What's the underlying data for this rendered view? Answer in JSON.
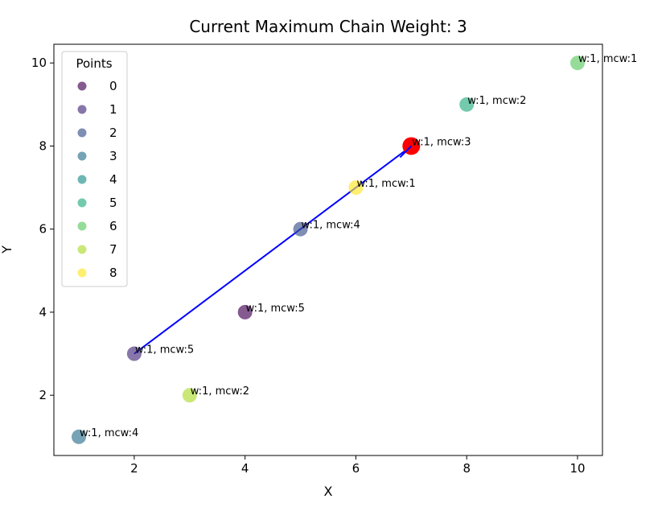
{
  "chart_data": {
    "type": "scatter",
    "title": "Current Maximum Chain Weight: 3",
    "xlabel": "X",
    "ylabel": "Y",
    "xlim": [
      0.55,
      10.45
    ],
    "ylim": [
      0.55,
      10.45
    ],
    "xticks": [
      2,
      4,
      6,
      8,
      10
    ],
    "yticks": [
      2,
      4,
      6,
      8,
      10
    ],
    "grid": false,
    "legend": {
      "title": "Points",
      "placement": "top-left",
      "entries": [
        "0",
        "1",
        "2",
        "3",
        "4",
        "5",
        "6",
        "7",
        "8"
      ]
    },
    "points": [
      {
        "id": 0,
        "x": 4,
        "y": 4,
        "label": "w:1, mcw:5",
        "color": "#440154"
      },
      {
        "id": 1,
        "x": 2,
        "y": 3,
        "label": "w:1, mcw:5",
        "color": "#472d7b"
      },
      {
        "id": 2,
        "x": 5,
        "y": 6,
        "label": "w:1, mcw:4",
        "color": "#3b528b"
      },
      {
        "id": 3,
        "x": 1,
        "y": 1,
        "label": "w:1, mcw:4",
        "color": "#2c728e"
      },
      {
        "id": 4,
        "x": 7,
        "y": 8,
        "label": "w:1, mcw:3",
        "color": "#21918c"
      },
      {
        "id": 5,
        "x": 8,
        "y": 9,
        "label": "w:1, mcw:2",
        "color": "#28ae80"
      },
      {
        "id": 6,
        "x": 10,
        "y": 10,
        "label": "w:1, mcw:1",
        "color": "#5ec962"
      },
      {
        "id": 7,
        "x": 3,
        "y": 2,
        "label": "w:1, mcw:2",
        "color": "#addc30"
      },
      {
        "id": 8,
        "x": 6,
        "y": 7,
        "label": "w:1, mcw:1",
        "color": "#fde725"
      }
    ],
    "highlight": {
      "x": 7,
      "y": 8,
      "color": "#ff0000"
    },
    "chain_line": {
      "points": [
        [
          2,
          3
        ],
        [
          7,
          8
        ]
      ],
      "color": "#0000ff"
    }
  }
}
